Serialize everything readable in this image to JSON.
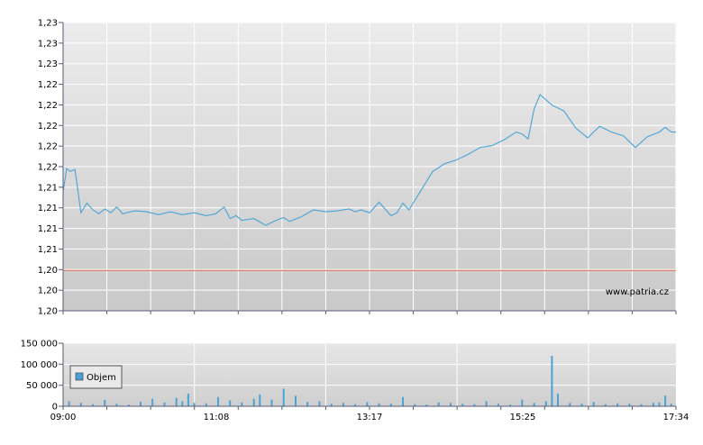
{
  "watermark": "www.patria.cz",
  "colors": {
    "price_line": "#4aa3d4",
    "reference_line": "#e0664e",
    "volume_bar": "#4aa3d4",
    "grid": "#ffffff",
    "axis": "#5a5a78"
  },
  "chart_data": [
    {
      "type": "line",
      "x_tick_labels": [
        "09:00",
        "11:08",
        "13:17",
        "15:25",
        "17:34"
      ],
      "y_tick_labels": [
        "1,20",
        "1,20",
        "1,20",
        "1,21",
        "1,21",
        "1,21",
        "1,21",
        "1,22",
        "1,22",
        "1,22",
        "1,22",
        "1,22",
        "1,23",
        "1,23",
        "1,23"
      ],
      "ylim": [
        1.2,
        1.23
      ],
      "reference_value": 1.2042,
      "series": [
        {
          "x": [
            "09:00",
            "09:03",
            "09:06",
            "09:10",
            "09:15",
            "09:20",
            "09:25",
            "09:30",
            "09:35",
            "09:40",
            "09:45",
            "09:50",
            "10:00",
            "10:10",
            "10:20",
            "10:30",
            "10:40",
            "10:50",
            "11:00",
            "11:08",
            "11:15",
            "11:20",
            "11:25",
            "11:30",
            "11:40",
            "11:50",
            "12:00",
            "12:05",
            "12:10",
            "12:20",
            "12:30",
            "12:40",
            "12:50",
            "13:00",
            "13:05",
            "13:10",
            "13:17",
            "13:25",
            "13:35",
            "13:40",
            "13:45",
            "13:50",
            "14:00",
            "14:10",
            "14:20",
            "14:30",
            "14:40",
            "14:50",
            "15:00",
            "15:10",
            "15:20",
            "15:25",
            "15:30",
            "15:35",
            "15:40",
            "15:50",
            "16:00",
            "16:10",
            "16:20",
            "16:30",
            "16:40",
            "16:50",
            "17:00",
            "17:10",
            "17:20",
            "17:25",
            "17:30",
            "17:34"
          ],
          "y": [
            1.2124,
            1.2148,
            1.2145,
            1.2147,
            1.2102,
            1.2112,
            1.2105,
            1.2101,
            1.2106,
            1.2102,
            1.2108,
            1.2101,
            1.2104,
            1.2103,
            1.21,
            1.2103,
            1.21,
            1.2102,
            1.2099,
            1.2101,
            1.2108,
            1.2096,
            1.2099,
            1.2094,
            1.2096,
            1.2089,
            1.2095,
            1.2097,
            1.2093,
            1.2098,
            1.2105,
            1.2103,
            1.2104,
            1.2106,
            1.2103,
            1.2105,
            1.2102,
            1.2113,
            1.2099,
            1.2102,
            1.2112,
            1.2105,
            1.2125,
            1.2145,
            1.2153,
            1.2157,
            1.2163,
            1.217,
            1.2172,
            1.2178,
            1.2186,
            1.2184,
            1.2179,
            1.221,
            1.2225,
            1.2214,
            1.2208,
            1.219,
            1.218,
            1.2192,
            1.2186,
            1.2182,
            1.217,
            1.2181,
            1.2186,
            1.2191,
            1.2186,
            1.2186
          ]
        }
      ]
    },
    {
      "type": "bar",
      "series_name": "Objem",
      "x_tick_labels": [
        "09:00",
        "11:08",
        "13:17",
        "15:25",
        "17:34"
      ],
      "y_tick_labels": [
        "0",
        "50 000",
        "100 000",
        "150 000"
      ],
      "ylim": [
        0,
        150000
      ],
      "x": [
        "09:05",
        "09:15",
        "09:25",
        "09:35",
        "09:45",
        "09:55",
        "10:05",
        "10:15",
        "10:25",
        "10:35",
        "10:40",
        "10:45",
        "10:50",
        "11:00",
        "11:10",
        "11:20",
        "11:30",
        "11:40",
        "11:45",
        "11:55",
        "12:05",
        "12:15",
        "12:25",
        "12:35",
        "12:45",
        "12:55",
        "13:05",
        "13:15",
        "13:25",
        "13:35",
        "13:45",
        "13:55",
        "14:05",
        "14:15",
        "14:25",
        "14:35",
        "14:45",
        "14:55",
        "15:05",
        "15:15",
        "15:25",
        "15:35",
        "15:45",
        "15:50",
        "15:55",
        "16:05",
        "16:15",
        "16:25",
        "16:35",
        "16:45",
        "16:55",
        "17:05",
        "17:15",
        "17:20",
        "17:25",
        "17:30"
      ],
      "values": [
        12000,
        8000,
        5000,
        15000,
        6000,
        4000,
        11000,
        18000,
        9000,
        20000,
        12000,
        30000,
        8000,
        7000,
        22000,
        14000,
        9000,
        18000,
        28000,
        16000,
        42000,
        25000,
        10000,
        12000,
        6000,
        8000,
        5000,
        10000,
        7000,
        6000,
        22000,
        5000,
        4000,
        9000,
        8000,
        6000,
        5000,
        12000,
        6000,
        4000,
        16000,
        8000,
        12000,
        120000,
        30000,
        8000,
        6000,
        10000,
        5000,
        7000,
        6000,
        5000,
        8000,
        9000,
        25000,
        6000
      ]
    }
  ]
}
